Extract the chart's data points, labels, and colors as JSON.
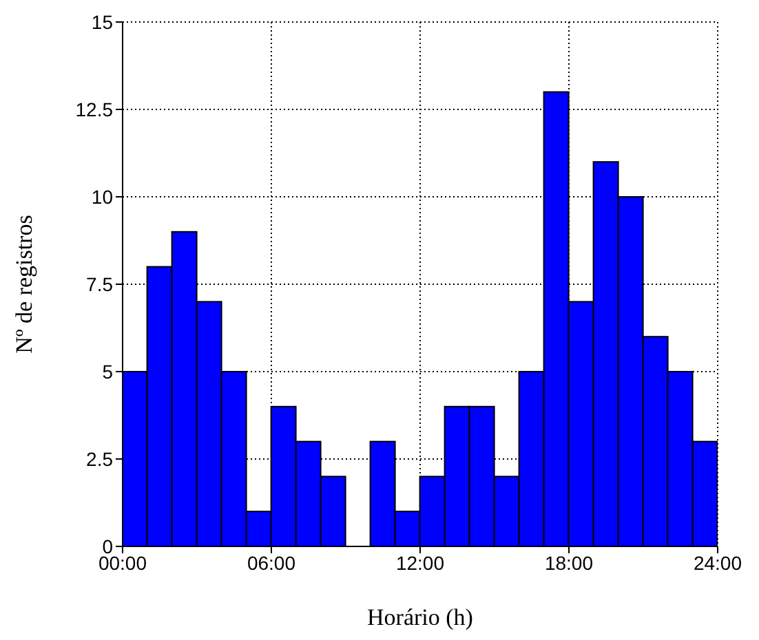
{
  "chart_data": {
    "type": "histogram",
    "xlabel": "Horário (h)",
    "ylabel": "Nº de registros",
    "bins": [
      0,
      1,
      2,
      3,
      4,
      5,
      6,
      7,
      8,
      9,
      10,
      11,
      12,
      13,
      14,
      15,
      16,
      17,
      18,
      19,
      20,
      21,
      22,
      23,
      24
    ],
    "values": [
      5,
      8,
      9,
      7,
      5,
      1,
      4,
      3,
      2,
      0,
      3,
      1,
      2,
      4,
      4,
      2,
      5,
      13,
      7,
      11,
      10,
      6,
      5,
      3
    ],
    "color": "#0000ff",
    "xlim": [
      0,
      24
    ],
    "xticks": [
      {
        "value": 0,
        "label": "00:00"
      },
      {
        "value": 6,
        "label": "06:00"
      },
      {
        "value": 12,
        "label": "12:00"
      },
      {
        "value": 18,
        "label": "18:00"
      },
      {
        "value": 24,
        "label": "24:00"
      }
    ],
    "ylim": [
      0,
      15
    ],
    "yticks": [
      0,
      2.5,
      5,
      7.5,
      10,
      12.5,
      15
    ],
    "grid": true
  }
}
